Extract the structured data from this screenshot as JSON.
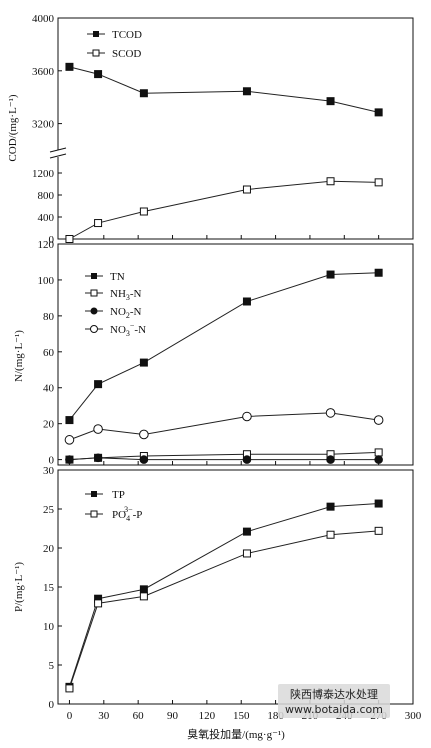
{
  "chart_data": [
    {
      "type": "line",
      "panel": "cod",
      "ylabel": "COD/(mg·L⁻¹)",
      "axis_break": true,
      "upper_ylim": [
        3000,
        4000
      ],
      "upper_yticks": [
        "3200",
        "3600",
        "4000"
      ],
      "lower_ylim": [
        0,
        1400
      ],
      "lower_yticks": [
        "0",
        "400",
        "800",
        "1200"
      ],
      "series": [
        {
          "name": "TCOD",
          "marker": "filled-square",
          "x": [
            0,
            25,
            65,
            155,
            228,
            270
          ],
          "values": [
            3630,
            3575,
            3430,
            3445,
            3370,
            3285
          ]
        },
        {
          "name": "SCOD",
          "marker": "open-square",
          "x": [
            0,
            25,
            65,
            155,
            228,
            270
          ],
          "values": [
            0,
            290,
            500,
            900,
            1050,
            1030
          ]
        }
      ]
    },
    {
      "type": "line",
      "panel": "n",
      "ylabel": "N/(mg·L⁻¹)",
      "ylim": [
        -3,
        120
      ],
      "yticks": [
        "0",
        "20",
        "40",
        "60",
        "80",
        "100",
        "120"
      ],
      "series": [
        {
          "name": "TN",
          "marker": "filled-square",
          "x": [
            0,
            25,
            65,
            155,
            228,
            270
          ],
          "values": [
            22,
            42,
            54,
            88,
            103,
            104
          ]
        },
        {
          "name": "NH3-N",
          "marker": "open-square",
          "x": [
            0,
            25,
            65,
            155,
            228,
            270
          ],
          "values": [
            0,
            1,
            2,
            3,
            3,
            4
          ]
        },
        {
          "name": "NO2-N",
          "marker": "filled-circle",
          "x": [
            0,
            25,
            65,
            155,
            228,
            270
          ],
          "values": [
            0,
            1,
            0,
            0,
            0,
            0
          ]
        },
        {
          "name": "NO3-N",
          "marker": "open-circle",
          "x": [
            0,
            25,
            65,
            155,
            228,
            270
          ],
          "values": [
            11,
            17,
            14,
            24,
            26,
            22
          ]
        }
      ]
    },
    {
      "type": "line",
      "panel": "p",
      "ylabel": "P/(mg·L⁻¹)",
      "ylim": [
        0,
        30
      ],
      "yticks": [
        "0",
        "5",
        "10",
        "15",
        "20",
        "25",
        "30"
      ],
      "xlabel": "臭氧投加量/(mg·g⁻¹)",
      "xlim": [
        -10,
        300
      ],
      "xticks": [
        "0",
        "30",
        "60",
        "90",
        "120",
        "150",
        "180",
        "210",
        "240",
        "270",
        "300"
      ],
      "series": [
        {
          "name": "TP",
          "marker": "filled-square",
          "x": [
            0,
            25,
            65,
            155,
            228,
            270
          ],
          "values": [
            2.2,
            13.5,
            14.7,
            22.1,
            25.3,
            25.7
          ]
        },
        {
          "name": "PO4-P",
          "marker": "open-square",
          "x": [
            0,
            25,
            65,
            155,
            228,
            270
          ],
          "values": [
            2.0,
            12.9,
            13.8,
            19.3,
            21.7,
            22.2
          ]
        }
      ]
    }
  ],
  "legend": {
    "cod": [
      "TCOD",
      "SCOD"
    ],
    "n": [
      {
        "base": "NH",
        "sub": "3",
        "rest": "-N"
      },
      {
        "base": "NO",
        "sub": "2",
        "rest": "-N"
      },
      {
        "base": "NO",
        "sub": "3",
        "sup": "−",
        "rest": "-N"
      }
    ],
    "n_tn": "TN",
    "p_tp": "TP",
    "p_po4": {
      "base": "PO",
      "sub": "4",
      "sup": "3−",
      "rest": "-P"
    }
  },
  "watermark": {
    "line1": "陕西博泰达水处理",
    "line2": "www.botaida.com"
  }
}
